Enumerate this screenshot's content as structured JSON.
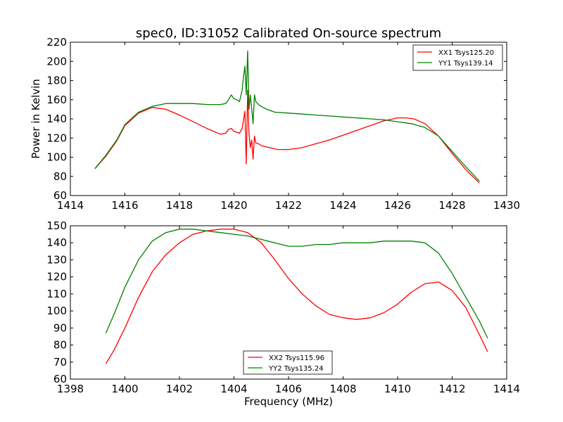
{
  "title": "spec0, ID:31052 Calibrated On-source spectrum",
  "chart_data": [
    {
      "type": "line",
      "title": "spec0, ID:31052 Calibrated On-source spectrum",
      "xlabel": "",
      "ylabel": "Power in Kelvin",
      "xlim": [
        1414,
        1430
      ],
      "ylim": [
        60,
        220
      ],
      "xticks": [
        "1414",
        "1416",
        "1418",
        "1420",
        "1422",
        "1424",
        "1426",
        "1428",
        "1430"
      ],
      "yticks": [
        "60",
        "80",
        "100",
        "120",
        "140",
        "160",
        "180",
        "200",
        "220"
      ],
      "grid": false,
      "legend_position": "top-right",
      "series": [
        {
          "name": "XX1 Tsys125.20",
          "color": "#ff0000",
          "x": [
            1414.9,
            1415.3,
            1415.7,
            1416.0,
            1416.5,
            1417.0,
            1417.5,
            1418.0,
            1418.5,
            1419.0,
            1419.5,
            1419.7,
            1419.8,
            1419.9,
            1420.0,
            1420.2,
            1420.3,
            1420.4,
            1420.45,
            1420.5,
            1420.55,
            1420.6,
            1420.65,
            1420.7,
            1420.75,
            1420.8,
            1420.9,
            1421.0,
            1421.3,
            1421.6,
            1422.0,
            1422.5,
            1423.0,
            1423.5,
            1424.0,
            1424.5,
            1425.0,
            1425.5,
            1426.0,
            1426.3,
            1426.6,
            1427.0,
            1427.5,
            1428.0,
            1428.5,
            1429.0
          ],
          "y": [
            88,
            101,
            117,
            133,
            146,
            152,
            150,
            144,
            137,
            130,
            124,
            125,
            129,
            130,
            127,
            125,
            130,
            148,
            93,
            170,
            125,
            110,
            118,
            98,
            122,
            115,
            114,
            112,
            110,
            108,
            108,
            110,
            114,
            118,
            123,
            128,
            133,
            138,
            141,
            141,
            140,
            135,
            122,
            104,
            87,
            73
          ]
        },
        {
          "name": "YY1 Tsys139.14",
          "color": "#008000",
          "x": [
            1414.9,
            1415.3,
            1415.7,
            1416.0,
            1416.5,
            1417.0,
            1417.5,
            1418.0,
            1418.5,
            1419.0,
            1419.5,
            1419.7,
            1419.8,
            1419.9,
            1420.0,
            1420.1,
            1420.2,
            1420.3,
            1420.35,
            1420.4,
            1420.45,
            1420.5,
            1420.55,
            1420.6,
            1420.65,
            1420.7,
            1420.75,
            1420.8,
            1420.9,
            1421.0,
            1421.2,
            1421.5,
            1422.0,
            1422.5,
            1423.0,
            1423.5,
            1424.0,
            1424.5,
            1425.0,
            1425.5,
            1426.0,
            1426.5,
            1427.0,
            1427.5,
            1428.0,
            1428.5,
            1429.0
          ],
          "y": [
            88,
            102,
            118,
            134,
            147,
            153,
            156,
            156,
            156,
            155,
            155,
            156,
            160,
            165,
            161,
            160,
            158,
            170,
            185,
            195,
            165,
            211,
            150,
            165,
            150,
            135,
            165,
            158,
            155,
            153,
            150,
            147,
            146,
            145,
            144,
            143,
            142,
            141,
            140,
            139,
            137,
            135,
            131,
            122,
            106,
            90,
            75
          ]
        }
      ]
    },
    {
      "type": "line",
      "title": "",
      "xlabel": "Frequency (MHz)",
      "ylabel": "",
      "xlim": [
        1398,
        1414
      ],
      "ylim": [
        60,
        150
      ],
      "xticks": [
        "1398",
        "1400",
        "1402",
        "1404",
        "1406",
        "1408",
        "1410",
        "1412",
        "1414"
      ],
      "yticks": [
        "60",
        "70",
        "80",
        "90",
        "100",
        "110",
        "120",
        "130",
        "140",
        "150"
      ],
      "grid": false,
      "legend_position": "bottom-center",
      "series": [
        {
          "name": "XX2 Tsys115.96",
          "color": "#ff0000",
          "x": [
            1399.3,
            1399.6,
            1400.0,
            1400.5,
            1401.0,
            1401.5,
            1402.0,
            1402.5,
            1403.0,
            1403.5,
            1404.0,
            1404.5,
            1405.0,
            1405.5,
            1406.0,
            1406.5,
            1407.0,
            1407.5,
            1408.0,
            1408.5,
            1409.0,
            1409.5,
            1410.0,
            1410.5,
            1411.0,
            1411.5,
            1412.0,
            1412.5,
            1413.0,
            1413.3
          ],
          "y": [
            69,
            77,
            90,
            108,
            123,
            133,
            140,
            145,
            147,
            148,
            148,
            146,
            140,
            130,
            119,
            110,
            103,
            98,
            96,
            95,
            96,
            99,
            104,
            111,
            116,
            117,
            112,
            102,
            86,
            76
          ]
        },
        {
          "name": "YY2 Tsys135.24",
          "color": "#008000",
          "x": [
            1399.3,
            1399.6,
            1400.0,
            1400.5,
            1401.0,
            1401.5,
            1402.0,
            1402.5,
            1403.0,
            1403.5,
            1404.0,
            1404.5,
            1405.0,
            1405.5,
            1406.0,
            1406.5,
            1407.0,
            1407.5,
            1408.0,
            1408.5,
            1409.0,
            1409.5,
            1410.0,
            1410.5,
            1411.0,
            1411.5,
            1412.0,
            1412.5,
            1413.0,
            1413.3
          ],
          "y": [
            87,
            98,
            114,
            130,
            141,
            146,
            148,
            148,
            147,
            146,
            145,
            144,
            142,
            140,
            138,
            138,
            139,
            139,
            140,
            140,
            140,
            141,
            141,
            141,
            140,
            134,
            122,
            108,
            94,
            84
          ]
        }
      ]
    }
  ]
}
